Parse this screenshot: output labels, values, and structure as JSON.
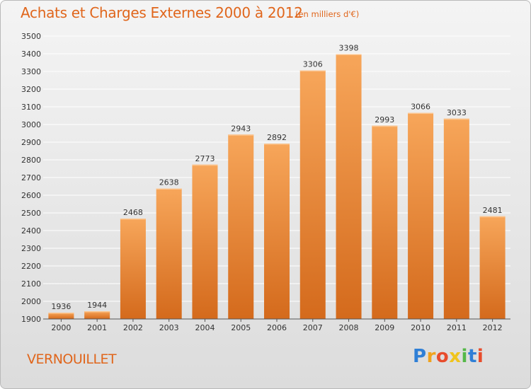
{
  "header": {
    "title": "Achats et Charges Externes 2000 à 2012",
    "subtitle": "(en milliers d'€)"
  },
  "footer": {
    "commune": "VERNOUILLET",
    "logo_text": "Proxiti",
    "logo_icon": "proxiti-logo-icon"
  },
  "colors": {
    "bar_top": "#f7a65a",
    "bar_bottom": "#d46a1c",
    "accent_text": "#e0661c",
    "grid": "#ffffff"
  },
  "chart_data": {
    "type": "bar",
    "title": "Achats et Charges Externes 2000 à 2012",
    "subtitle": "(en milliers d'€)",
    "categories": [
      "2000",
      "2001",
      "2002",
      "2003",
      "2004",
      "2005",
      "2006",
      "2007",
      "2008",
      "2009",
      "2010",
      "2011",
      "2012"
    ],
    "values": [
      1936,
      1944,
      2468,
      2638,
      2773,
      2943,
      2892,
      3306,
      3398,
      2993,
      3066,
      3033,
      2481
    ],
    "ylim": [
      1900,
      3500
    ],
    "yticks": [
      1900,
      2000,
      2100,
      2200,
      2300,
      2400,
      2500,
      2600,
      2700,
      2800,
      2900,
      3000,
      3100,
      3200,
      3300,
      3400,
      3500
    ],
    "grid": true,
    "data_labels": true
  }
}
